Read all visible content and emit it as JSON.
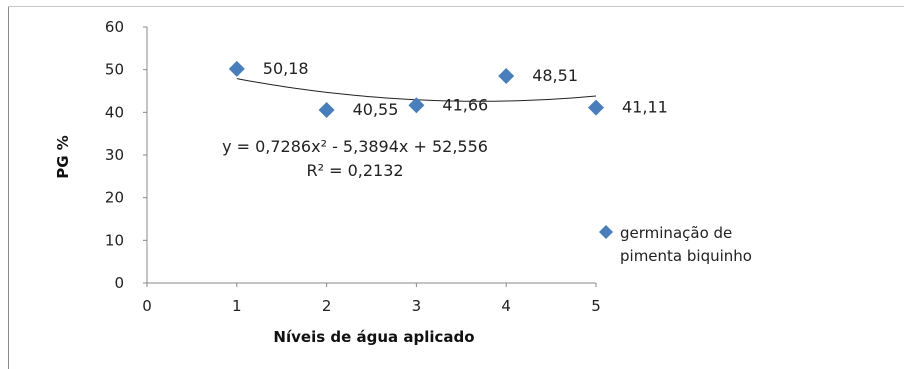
{
  "chart_data": {
    "type": "scatter",
    "xlabel": "Níveis de água aplicado",
    "ylabel": "PG %",
    "xlim": [
      0,
      5
    ],
    "ylim": [
      0,
      60
    ],
    "x_ticks": [
      "0",
      "1",
      "2",
      "3",
      "4",
      "5"
    ],
    "y_ticks": [
      "0",
      "10",
      "20",
      "30",
      "40",
      "50",
      "60"
    ],
    "grid": false,
    "legend_position": "right",
    "series": [
      {
        "name": "germinação de pimenta biquinho",
        "color": "#4a7ebb",
        "marker": "diamond",
        "x": [
          1,
          2,
          3,
          4,
          5
        ],
        "y": [
          50.18,
          40.55,
          41.66,
          48.51,
          41.11
        ],
        "labels": [
          "50,18",
          "40,55",
          "41,66",
          "48,51",
          "41,11"
        ]
      }
    ],
    "trendline": {
      "type": "polynomial",
      "degree": 2,
      "coefficients": [
        0.7286,
        -5.3894,
        52.556
      ],
      "x_range": [
        1,
        5
      ],
      "equation": "y = 0,7286x² - 5,3894x + 52,556",
      "r_squared": "R² = 0,2132"
    }
  }
}
